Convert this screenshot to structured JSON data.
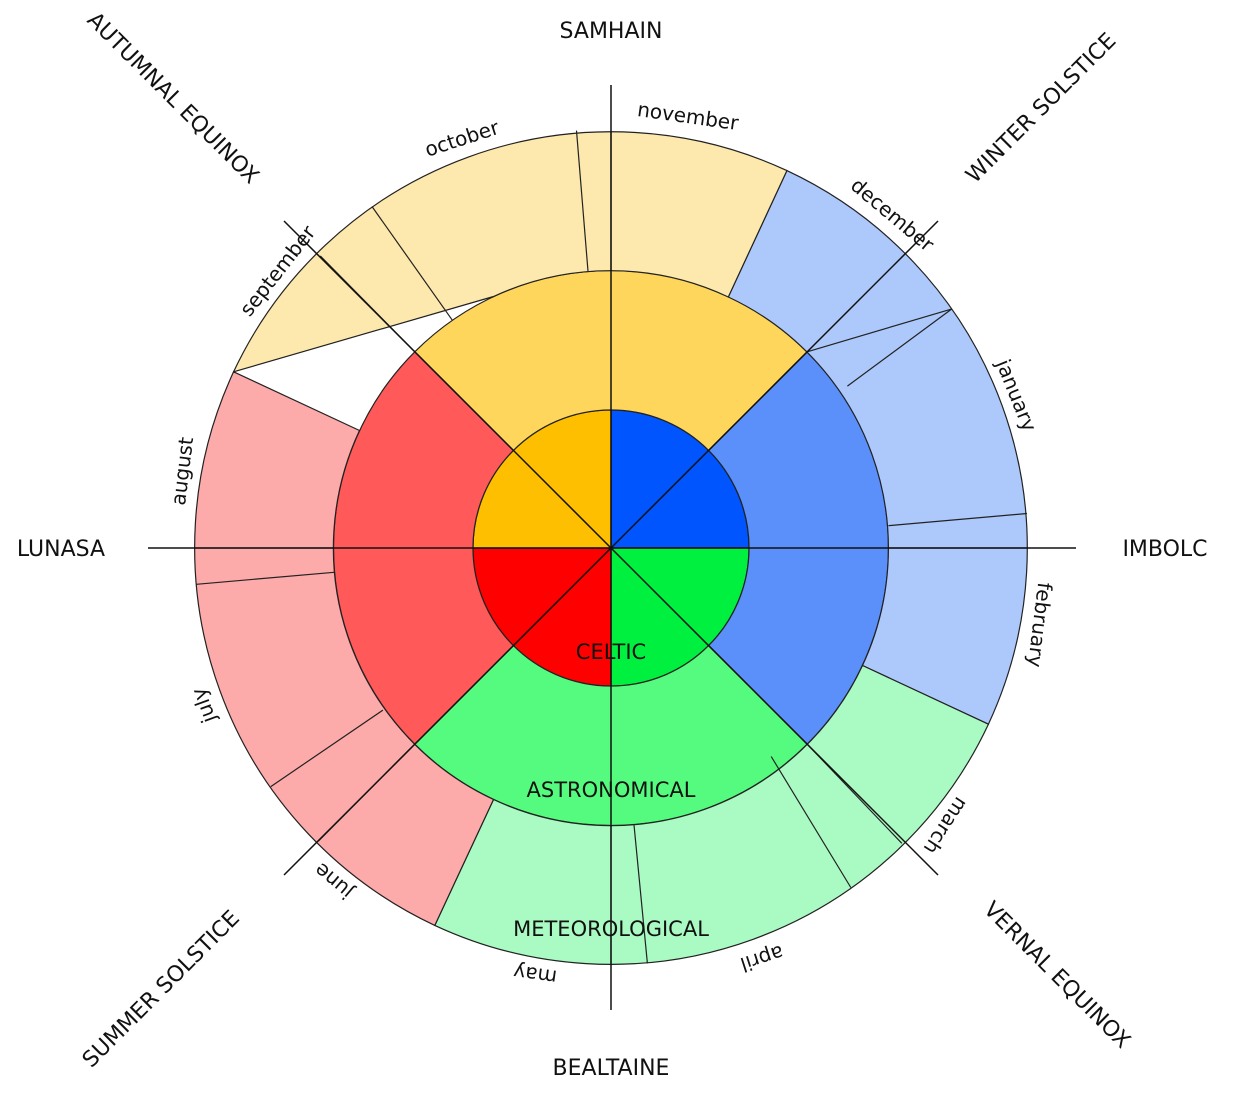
{
  "festivals": {
    "samhain": "SAMHAIN",
    "imbolc": "IMBOLC",
    "bealtaine": "BEALTAINE",
    "lunasa": "LUNASA"
  },
  "events": {
    "winter_solstice": "WINTER SOLSTICE",
    "vernal_equinox": "VERNAL EQUINOX",
    "summer_solstice": "SUMMER SOLSTICE",
    "autumnal_equinox": "AUTUMNAL EQUINOX"
  },
  "rings": {
    "celtic": "CELTIC",
    "astronomical": "ASTRONOMICAL",
    "meteorological": "METEOROLOGICAL"
  },
  "months": {
    "november": "november",
    "december": "december",
    "january": "january",
    "february": "february",
    "march": "march",
    "april": "april",
    "may": "may",
    "june": "june",
    "july": "july",
    "august": "august",
    "september": "september",
    "october": "october"
  },
  "colors": {
    "winter_inner": "#0055ff",
    "winter_mid": "#5b8ff9",
    "winter_outer": "#adc8fb",
    "spring_inner": "#00f040",
    "spring_mid": "#55fb7f",
    "spring_outer": "#aafac3",
    "summer_inner": "#ff0000",
    "summer_mid": "#ff5959",
    "summer_outer": "#fdaaaa",
    "autumn_inner": "#fdbf00",
    "autumn_mid": "#fed65c",
    "autumn_outer": "#fde8ad"
  }
}
